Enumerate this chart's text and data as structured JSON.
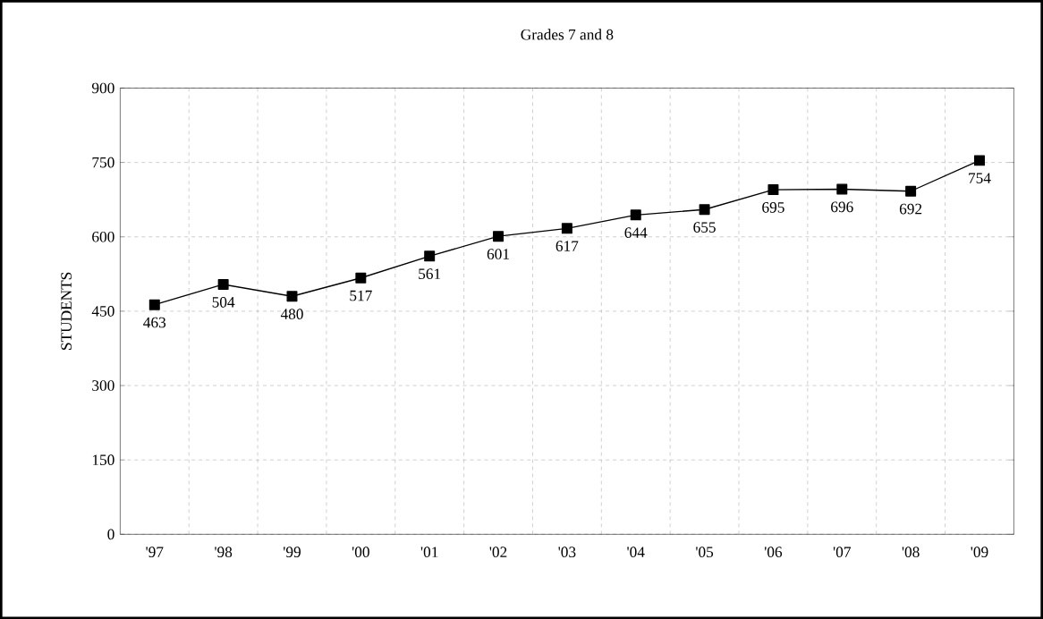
{
  "chart_data": {
    "type": "line",
    "title": "Grades 7 and 8",
    "ylabel": "STUDENTS",
    "categories": [
      "'97",
      "'98",
      "'99",
      "'00",
      "'01",
      "'02",
      "'03",
      "'04",
      "'05",
      "'06",
      "'07",
      "'08",
      "'09"
    ],
    "values": [
      463,
      504,
      480,
      517,
      561,
      601,
      617,
      644,
      655,
      695,
      696,
      692,
      754
    ],
    "color": "#000000",
    "marker": "square",
    "line_style": "solid",
    "ylim": [
      0,
      900
    ],
    "yticks": [
      0,
      150,
      300,
      450,
      600,
      750,
      900
    ],
    "grid": true,
    "data_labels": true
  }
}
